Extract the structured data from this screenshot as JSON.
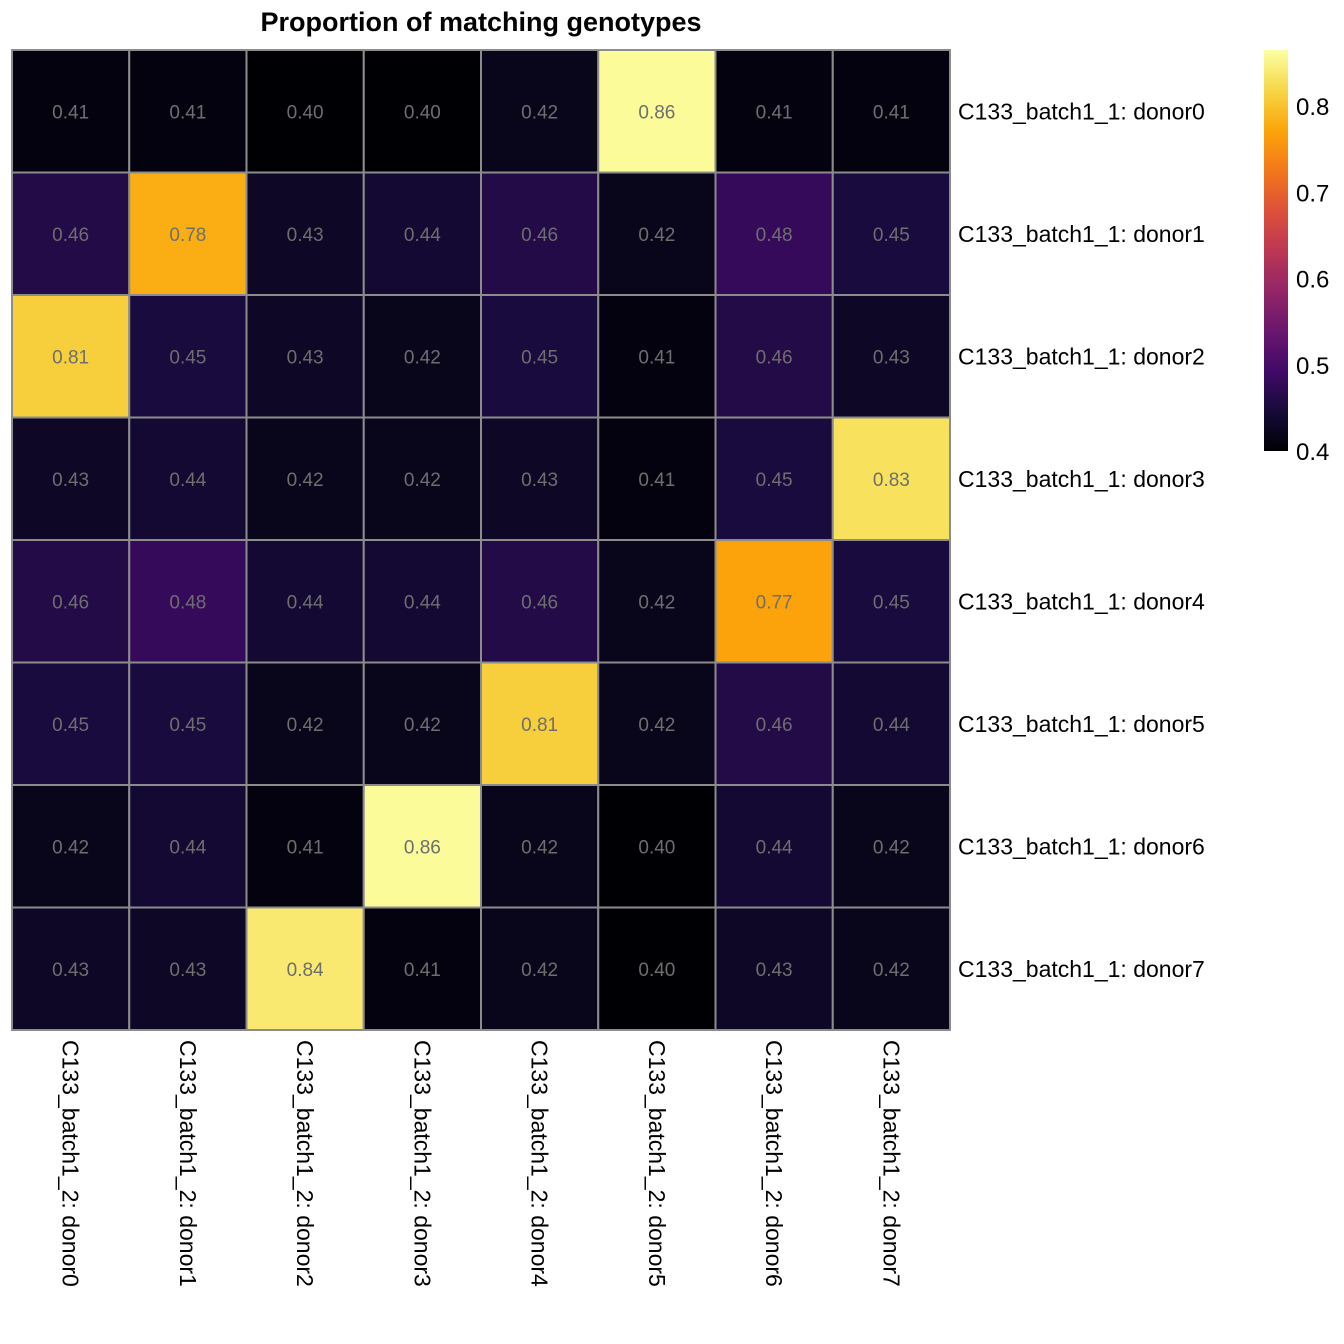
{
  "chart_data": {
    "type": "heatmap",
    "title": "Proportion of matching genotypes",
    "rows": [
      "C133_batch1_1: donor0",
      "C133_batch1_1: donor1",
      "C133_batch1_1: donor2",
      "C133_batch1_1: donor3",
      "C133_batch1_1: donor4",
      "C133_batch1_1: donor5",
      "C133_batch1_1: donor6",
      "C133_batch1_1: donor7"
    ],
    "columns": [
      "C133_batch1_2: donor0",
      "C133_batch1_2: donor1",
      "C133_batch1_2: donor2",
      "C133_batch1_2: donor3",
      "C133_batch1_2: donor4",
      "C133_batch1_2: donor5",
      "C133_batch1_2: donor6",
      "C133_batch1_2: donor7"
    ],
    "values": [
      [
        0.41,
        0.41,
        0.4,
        0.4,
        0.42,
        0.86,
        0.41,
        0.41
      ],
      [
        0.46,
        0.78,
        0.43,
        0.44,
        0.46,
        0.42,
        0.48,
        0.45
      ],
      [
        0.81,
        0.45,
        0.43,
        0.42,
        0.45,
        0.41,
        0.46,
        0.43
      ],
      [
        0.43,
        0.44,
        0.42,
        0.42,
        0.43,
        0.41,
        0.45,
        0.83
      ],
      [
        0.46,
        0.48,
        0.44,
        0.44,
        0.46,
        0.42,
        0.77,
        0.45
      ],
      [
        0.45,
        0.45,
        0.42,
        0.42,
        0.81,
        0.42,
        0.46,
        0.44
      ],
      [
        0.42,
        0.44,
        0.41,
        0.86,
        0.42,
        0.4,
        0.44,
        0.42
      ],
      [
        0.43,
        0.43,
        0.84,
        0.41,
        0.42,
        0.4,
        0.43,
        0.42
      ]
    ],
    "colormap": "inferno",
    "color_range": [
      0.4,
      0.865
    ],
    "colorbar_ticks": [
      "0.4",
      "0.5",
      "0.6",
      "0.7",
      "0.8"
    ],
    "cell_label_color": "#6e6e6e",
    "cell_border_color": "#8c8c8c",
    "legend_position": "top-right"
  }
}
